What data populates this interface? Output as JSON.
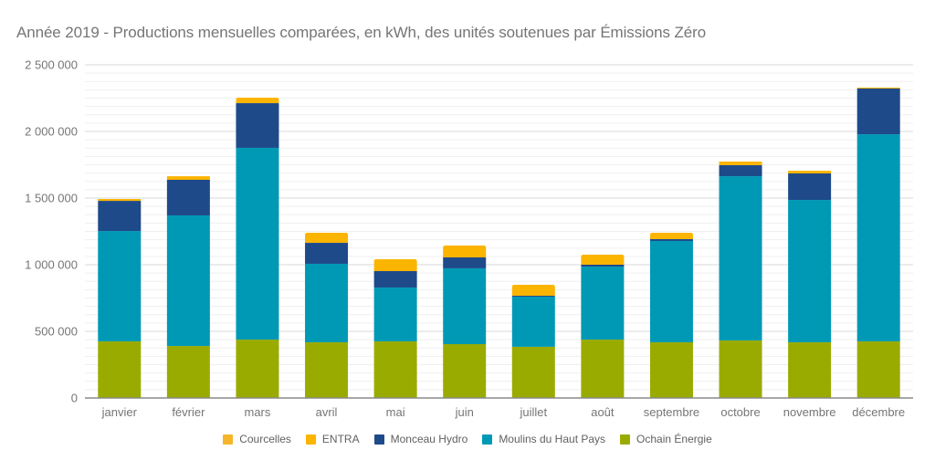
{
  "chart_data": {
    "type": "bar",
    "stacked": true,
    "title": "Année 2019 - Productions mensuelles comparées, en kWh, des unités soutenues par Émissions Zéro",
    "xlabel": "",
    "ylabel": "",
    "ylim": [
      0,
      2500000
    ],
    "yticks": [
      0,
      500000,
      1000000,
      1500000,
      2000000,
      2500000
    ],
    "ytick_labels": [
      "0",
      "500 000",
      "1 000 000",
      "1 500 000",
      "2 000 000",
      "2 500 000"
    ],
    "minor_gridlines_per_major": 7,
    "grid": true,
    "legend_position": "bottom",
    "categories": [
      "janvier",
      "février",
      "mars",
      "avril",
      "mai",
      "juin",
      "juillet",
      "août",
      "septembre",
      "octobre",
      "novembre",
      "décembre"
    ],
    "series": [
      {
        "name": "Ochain Énergie",
        "color": "#9aab00",
        "values": [
          425000,
          390000,
          438000,
          418000,
          425000,
          404000,
          384000,
          438000,
          418000,
          432000,
          418000,
          425000
        ]
      },
      {
        "name": "Moulins du Haut Pays",
        "color": "#0099b5",
        "values": [
          828000,
          980000,
          1439000,
          589000,
          404000,
          569000,
          376000,
          548000,
          760000,
          1232000,
          1068000,
          1554000
        ]
      },
      {
        "name": "Monceau Hydro",
        "color": "#1e4a8a",
        "values": [
          226000,
          267000,
          335000,
          157000,
          123000,
          82000,
          7000,
          14000,
          14000,
          83000,
          199000,
          343000
        ]
      },
      {
        "name": "ENTRA",
        "color": "#fbb400",
        "values": [
          14000,
          27000,
          41000,
          76000,
          89000,
          89000,
          82000,
          75000,
          48000,
          27000,
          20000,
          7000
        ]
      },
      {
        "name": "Courcelles",
        "color": "#f6b52a",
        "values": [
          0,
          0,
          0,
          0,
          0,
          0,
          0,
          0,
          0,
          0,
          0,
          0
        ]
      }
    ],
    "legend_order": [
      "Courcelles",
      "ENTRA",
      "Monceau Hydro",
      "Moulins du Haut Pays",
      "Ochain Énergie"
    ]
  }
}
